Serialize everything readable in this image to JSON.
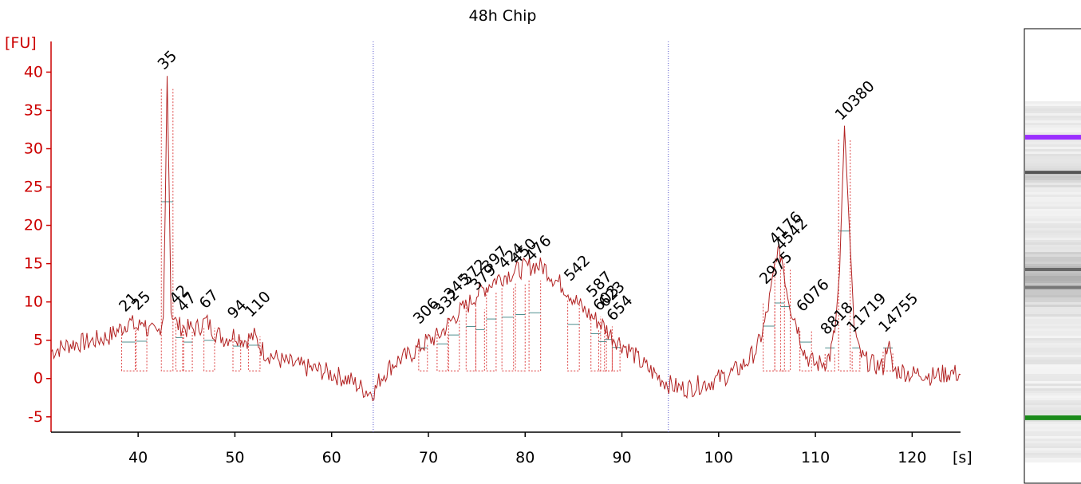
{
  "title": "48h Chip",
  "chart_data": {
    "type": "line",
    "title": "48h Chip",
    "y_unit_label": "[FU]",
    "x_unit_label": "[s]",
    "xlim": [
      31,
      125
    ],
    "ylim": [
      -7,
      44
    ],
    "x_ticks": [
      40,
      50,
      60,
      70,
      80,
      90,
      100,
      110,
      120
    ],
    "y_ticks": [
      -5,
      0,
      5,
      10,
      15,
      20,
      25,
      30,
      35,
      40
    ],
    "grid": false,
    "dotted_vertical_markers_x": [
      64.3,
      94.8
    ],
    "colors": {
      "trace": "#b22222",
      "axis": "#cc0000",
      "marker_line": "#5555cc",
      "lower_marker": "#228b22",
      "upper_marker": "#9b30ff",
      "baseline_segment": "#4f8f8f"
    },
    "series": [
      {
        "points": [
          [
            31,
            3.5
          ],
          [
            33,
            4.5
          ],
          [
            35,
            4.8
          ],
          [
            37,
            5.5
          ],
          [
            38.5,
            6.8
          ],
          [
            39,
            7.5
          ],
          [
            40,
            6.5
          ],
          [
            40.5,
            7.8
          ],
          [
            41,
            6.2
          ],
          [
            42,
            5.8
          ],
          [
            42.6,
            8
          ],
          [
            42.8,
            22
          ],
          [
            43,
            39.5
          ],
          [
            43.2,
            25
          ],
          [
            43.4,
            9
          ],
          [
            44,
            7
          ],
          [
            45,
            6.5
          ],
          [
            46,
            6.5
          ],
          [
            47,
            7.5
          ],
          [
            48,
            6
          ],
          [
            49,
            5.2
          ],
          [
            50,
            5.8
          ],
          [
            51,
            5
          ],
          [
            52,
            5.5
          ],
          [
            53,
            3.5
          ],
          [
            55,
            2.2
          ],
          [
            57,
            1.5
          ],
          [
            59,
            1
          ],
          [
            61,
            0.2
          ],
          [
            62,
            -0.3
          ],
          [
            63,
            -1.2
          ],
          [
            64,
            -1.8
          ],
          [
            64.5,
            -1.5
          ],
          [
            65,
            0
          ],
          [
            66,
            1.5
          ],
          [
            67,
            2.5
          ],
          [
            68,
            3
          ],
          [
            69,
            4
          ],
          [
            70,
            5
          ],
          [
            71,
            5.5
          ],
          [
            72,
            7
          ],
          [
            73,
            8.5
          ],
          [
            74,
            9.5
          ],
          [
            75,
            11
          ],
          [
            76,
            12
          ],
          [
            77,
            13
          ],
          [
            78,
            13.5
          ],
          [
            79,
            14
          ],
          [
            80,
            14.5
          ],
          [
            81,
            14.8
          ],
          [
            82,
            14.5
          ],
          [
            83,
            13
          ],
          [
            84,
            12
          ],
          [
            85,
            10.5
          ],
          [
            86,
            9
          ],
          [
            87,
            8
          ],
          [
            88,
            7
          ],
          [
            89,
            5.5
          ],
          [
            90,
            4.5
          ],
          [
            91,
            3.5
          ],
          [
            92,
            2
          ],
          [
            93,
            1
          ],
          [
            94,
            0
          ],
          [
            95,
            -0.8
          ],
          [
            96,
            -1.3
          ],
          [
            97,
            -1.2
          ],
          [
            98,
            -0.8
          ],
          [
            99,
            -0.5
          ],
          [
            100,
            0
          ],
          [
            101,
            0.5
          ],
          [
            102,
            1.2
          ],
          [
            103,
            2.3
          ],
          [
            104,
            4
          ],
          [
            104.5,
            6
          ],
          [
            105,
            8.5
          ],
          [
            105.5,
            12
          ],
          [
            106,
            16.5
          ],
          [
            106.5,
            16
          ],
          [
            107,
            12
          ],
          [
            107.5,
            9
          ],
          [
            108,
            7.5
          ],
          [
            108.5,
            5
          ],
          [
            109,
            3
          ],
          [
            110,
            1.8
          ],
          [
            111,
            2.2
          ],
          [
            111.5,
            3
          ],
          [
            112,
            6
          ],
          [
            112.5,
            14
          ],
          [
            113,
            33
          ],
          [
            113.5,
            20
          ],
          [
            114,
            7
          ],
          [
            114.5,
            3.5
          ],
          [
            115,
            2.5
          ],
          [
            116,
            1.8
          ],
          [
            117,
            1.5
          ],
          [
            117.5,
            5
          ],
          [
            118,
            1
          ],
          [
            119,
            1
          ],
          [
            120,
            0.5
          ],
          [
            121,
            0.8
          ],
          [
            122,
            0.3
          ],
          [
            123,
            0.5
          ],
          [
            124,
            0.8
          ],
          [
            125,
            0.5
          ]
        ]
      }
    ],
    "peaks": [
      {
        "label": "21",
        "x": 39.0,
        "y": 8.2,
        "base_x": [
          38.3,
          39.7
        ],
        "color": "#000000"
      },
      {
        "label": "25",
        "x": 40.3,
        "y": 8.4,
        "base_x": [
          39.8,
          40.9
        ],
        "color": "#000000"
      },
      {
        "label": "35",
        "x": 43.0,
        "y": 39.8,
        "base_x": [
          42.4,
          43.6
        ],
        "color": "#1a8a1a"
      },
      {
        "label": "42",
        "x": 44.2,
        "y": 9.2,
        "base_x": [
          43.9,
          44.6
        ],
        "color": "#000000"
      },
      {
        "label": "47",
        "x": 45.0,
        "y": 8.2,
        "base_x": [
          44.7,
          45.6
        ],
        "color": "#000000"
      },
      {
        "label": "67",
        "x": 47.3,
        "y": 8.6,
        "base_x": [
          46.8,
          47.9
        ],
        "color": "#000000"
      },
      {
        "label": "94",
        "x": 50.2,
        "y": 7.3,
        "base_x": [
          49.8,
          50.6
        ],
        "color": "#000000"
      },
      {
        "label": "110",
        "x": 52.0,
        "y": 7.5,
        "base_x": [
          51.4,
          52.6
        ],
        "color": "#000000"
      },
      {
        "label": "306",
        "x": 69.4,
        "y": 6.6,
        "base_x": [
          69.0,
          69.9
        ],
        "color": "#000000"
      },
      {
        "label": "332",
        "x": 71.5,
        "y": 7.8,
        "base_x": [
          70.9,
          72.0
        ],
        "color": "#000000"
      },
      {
        "label": "345",
        "x": 72.6,
        "y": 9.8,
        "base_x": [
          72.1,
          73.2
        ],
        "color": "#000000"
      },
      {
        "label": "372",
        "x": 74.3,
        "y": 11.7,
        "base_x": [
          73.9,
          74.9
        ],
        "color": "#000000"
      },
      {
        "label": "379",
        "x": 75.3,
        "y": 11.0,
        "base_x": [
          74.9,
          75.8
        ],
        "color": "#000000"
      },
      {
        "label": "397",
        "x": 76.5,
        "y": 13.4,
        "base_x": [
          76.0,
          77.0
        ],
        "color": "#000000"
      },
      {
        "label": "424",
        "x": 78.2,
        "y": 13.8,
        "base_x": [
          77.6,
          78.8
        ],
        "color": "#000000"
      },
      {
        "label": "450",
        "x": 79.5,
        "y": 14.4,
        "base_x": [
          79.0,
          80.0
        ],
        "color": "#000000"
      },
      {
        "label": "476",
        "x": 81.0,
        "y": 14.8,
        "base_x": [
          80.4,
          81.6
        ],
        "color": "#000000"
      },
      {
        "label": "542",
        "x": 85.0,
        "y": 12.2,
        "base_x": [
          84.4,
          85.6
        ],
        "color": "#000000"
      },
      {
        "label": "587",
        "x": 87.3,
        "y": 10.1,
        "base_x": [
          86.8,
          87.8
        ],
        "color": "#000000"
      },
      {
        "label": "603",
        "x": 88.0,
        "y": 8.3,
        "base_x": [
          87.6,
          88.4
        ],
        "color": "#000000"
      },
      {
        "label": "623",
        "x": 88.6,
        "y": 8.8,
        "base_x": [
          88.2,
          89.0
        ],
        "color": "#000000"
      },
      {
        "label": "654",
        "x": 89.4,
        "y": 7.0,
        "base_x": [
          89.0,
          89.8
        ],
        "color": "#000000"
      },
      {
        "label": "2975",
        "x": 105.2,
        "y": 11.8,
        "base_x": [
          104.6,
          105.8
        ],
        "color": "#000000"
      },
      {
        "label": "4176",
        "x": 106.2,
        "y": 17.0,
        "base_x": [
          105.8,
          106.8
        ],
        "color": "#000000"
      },
      {
        "label": "4542",
        "x": 106.8,
        "y": 16.2,
        "base_x": [
          106.4,
          107.4
        ],
        "color": "#000000"
      },
      {
        "label": "6076",
        "x": 109.0,
        "y": 8.2,
        "base_x": [
          108.4,
          109.6
        ],
        "color": "#000000"
      },
      {
        "label": "8818",
        "x": 111.5,
        "y": 5.2,
        "base_x": [
          111.0,
          112.0
        ],
        "color": "#000000"
      },
      {
        "label": "10380",
        "x": 113.0,
        "y": 33.2,
        "base_x": [
          112.4,
          113.6
        ],
        "color": "#9b30ff"
      },
      {
        "label": "11719",
        "x": 114.2,
        "y": 5.5,
        "base_x": [
          113.8,
          114.6
        ],
        "color": "#000000"
      },
      {
        "label": "14755",
        "x": 117.5,
        "y": 5.5,
        "base_x": [
          117.0,
          118.0
        ],
        "color": "#000000"
      }
    ],
    "gel_lane": {
      "bands": [
        {
          "position": 0.1,
          "color": "#9b30ff",
          "strength": 1
        },
        {
          "position": 0.2,
          "color": "#555555",
          "strength": 0.8
        },
        {
          "position": 0.47,
          "color": "#666666",
          "strength": 0.6
        },
        {
          "position": 0.52,
          "color": "#777777",
          "strength": 0.5
        },
        {
          "position": 0.88,
          "color": "#1a8a1a",
          "strength": 1
        }
      ]
    }
  }
}
